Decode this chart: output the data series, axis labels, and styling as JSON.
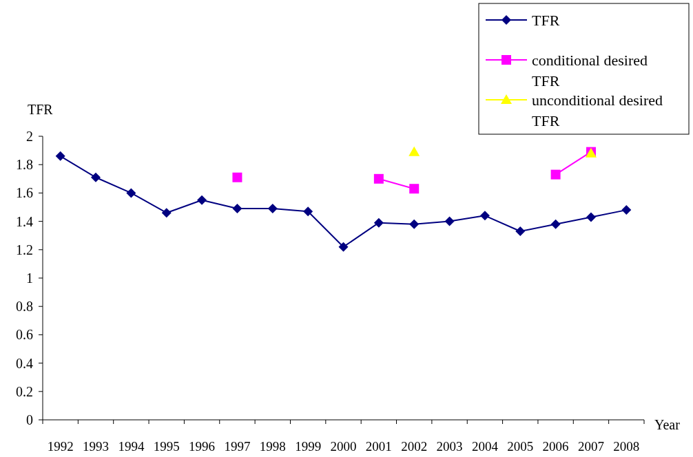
{
  "chart_data": {
    "type": "line",
    "ylabel": "TFR",
    "xlabel": "Year",
    "categories": [
      "1992",
      "1993",
      "1994",
      "1995",
      "1996",
      "1997",
      "1998",
      "1999",
      "2000",
      "2001",
      "2002",
      "2003",
      "2004",
      "2005",
      "2006",
      "2007",
      "2008"
    ],
    "series": [
      {
        "name": "TFR",
        "color": "#000080",
        "marker": "diamond",
        "values": [
          1.86,
          1.71,
          1.6,
          1.46,
          1.55,
          1.49,
          1.49,
          1.47,
          1.22,
          1.39,
          1.38,
          1.4,
          1.44,
          1.33,
          1.38,
          1.43,
          1.48
        ]
      },
      {
        "name": "conditional desired TFR",
        "color": "#ff00ff",
        "marker": "square",
        "values": [
          null,
          null,
          null,
          null,
          null,
          1.71,
          null,
          null,
          null,
          1.7,
          1.63,
          null,
          null,
          null,
          1.73,
          1.89,
          null
        ]
      },
      {
        "name": "unconditional desired TFR",
        "type": "scatter",
        "color": "#ffff00",
        "marker": "triangle",
        "values": [
          null,
          null,
          null,
          null,
          null,
          null,
          null,
          null,
          null,
          null,
          1.89,
          null,
          null,
          null,
          null,
          1.88,
          null
        ]
      }
    ],
    "ylim": [
      0,
      2
    ],
    "yticks": [
      0,
      0.2,
      0.4,
      0.6,
      0.8,
      1,
      1.2,
      1.4,
      1.6,
      1.8,
      2
    ],
    "grid": false,
    "legend": "top right",
    "line_style": "solid"
  }
}
